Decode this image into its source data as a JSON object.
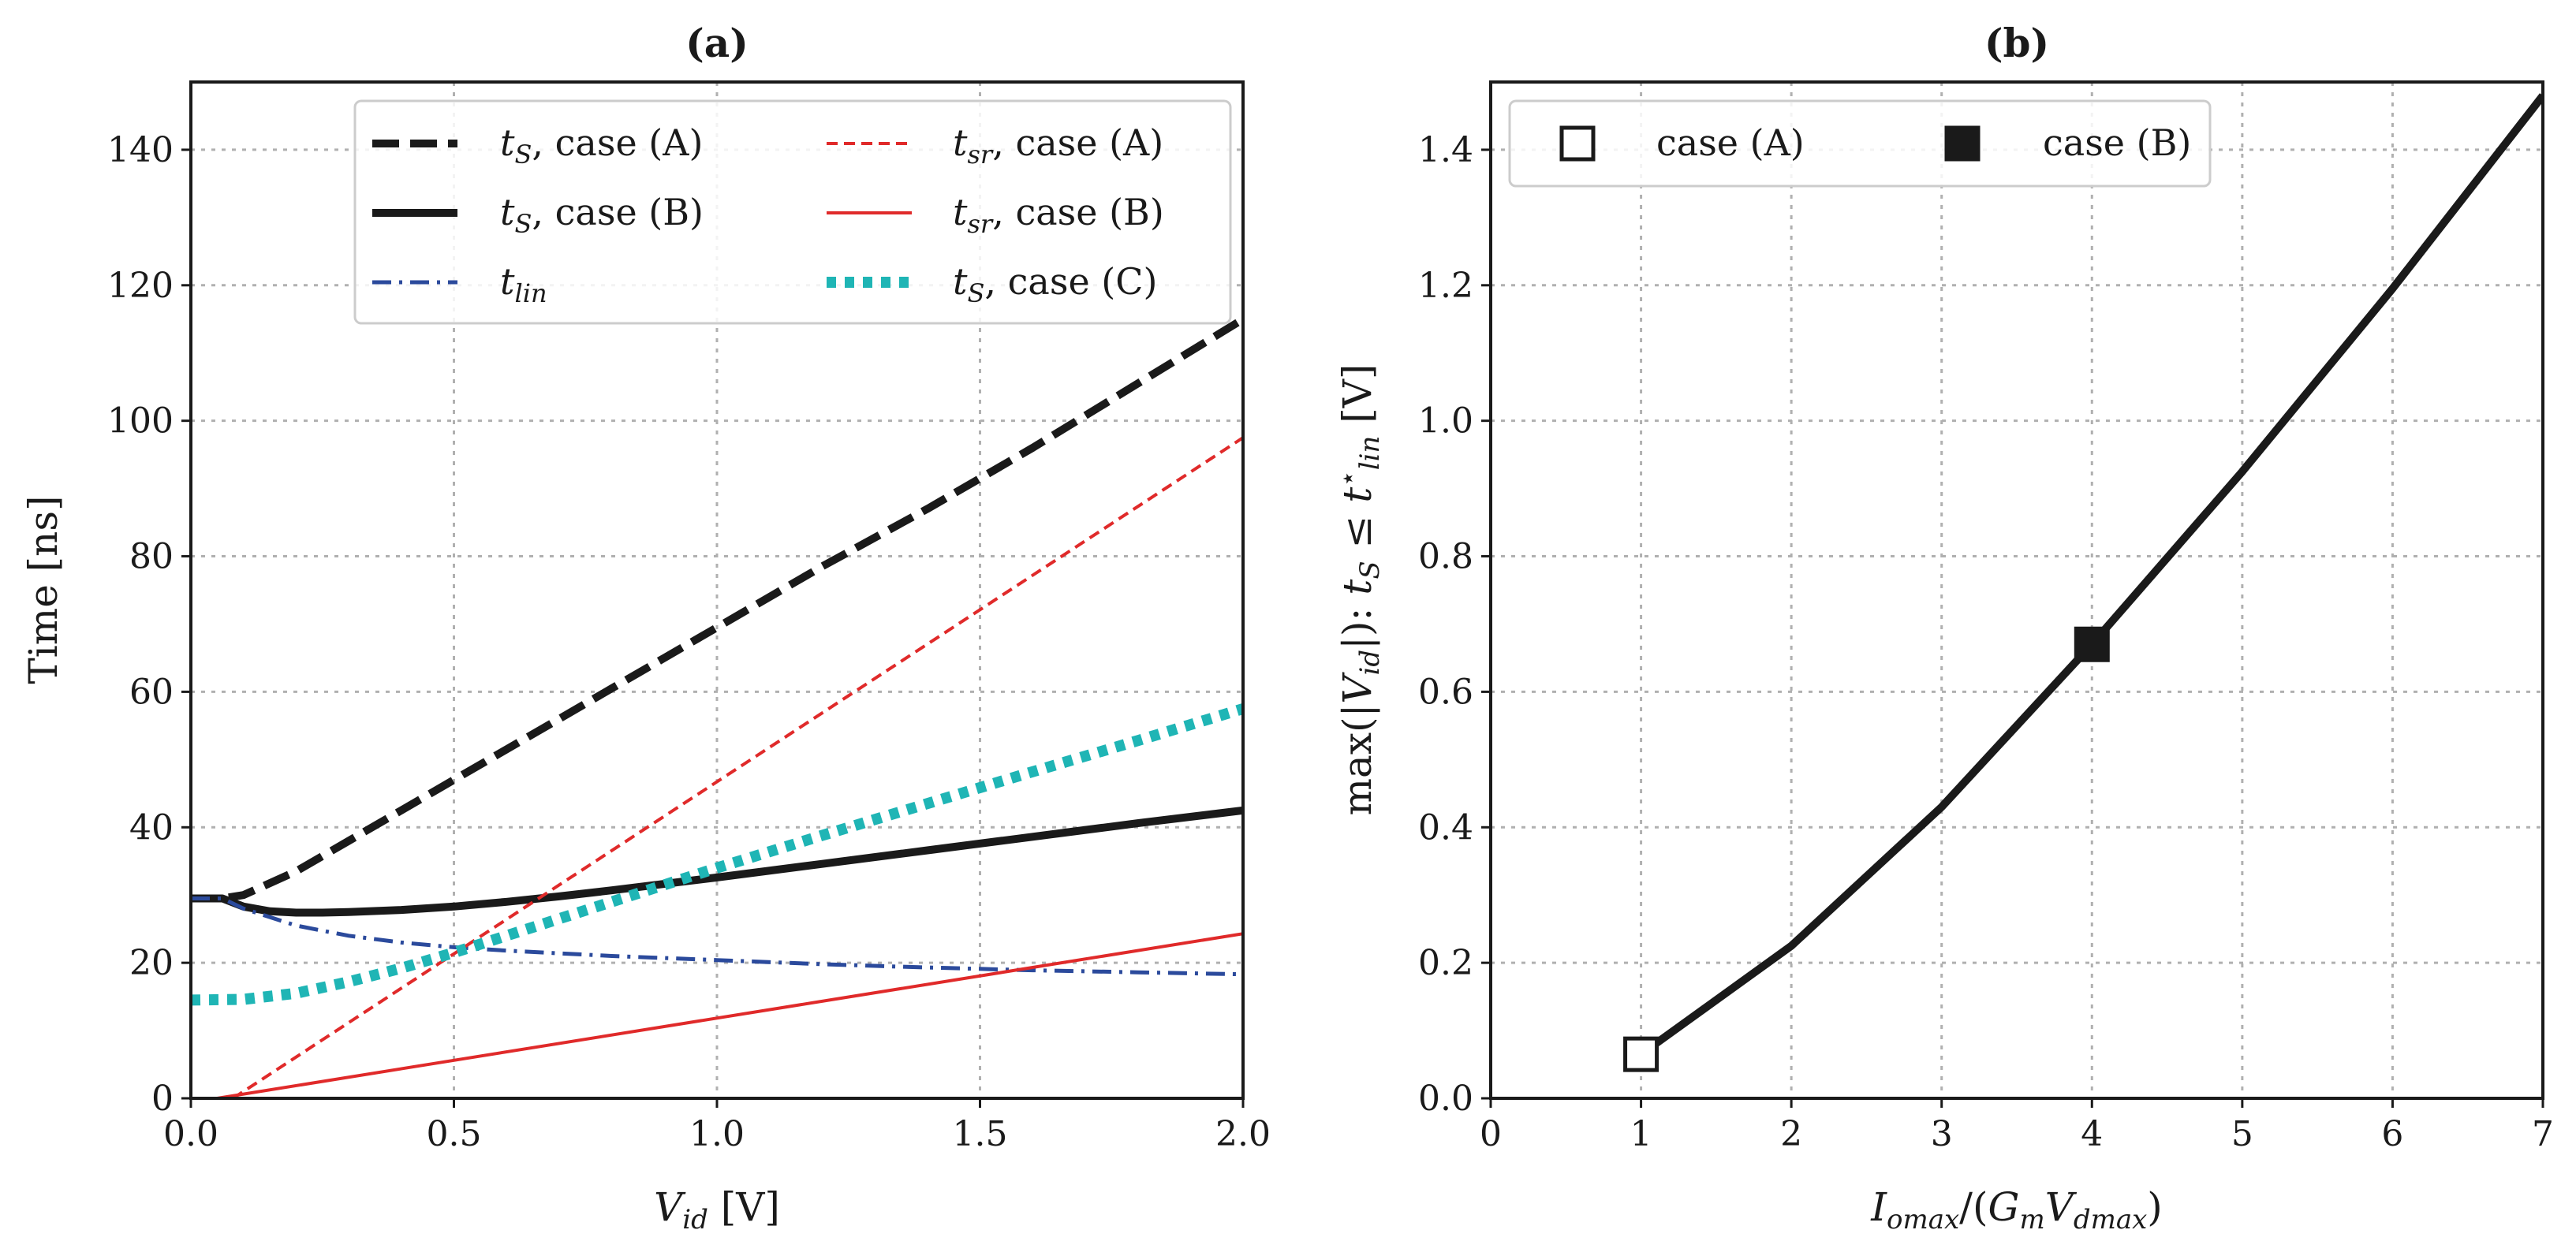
{
  "chart_data": [
    {
      "type": "line",
      "title": "(a)",
      "xlabel": "V_id [V]",
      "ylabel": "Time [ns]",
      "xlim": [
        0.0,
        2.0
      ],
      "ylim": [
        0,
        150
      ],
      "xticks": [
        0.0,
        0.5,
        1.0,
        1.5,
        2.0
      ],
      "xtick_labels": [
        "0.0",
        "0.5",
        "1.0",
        "1.5",
        "2.0"
      ],
      "yticks": [
        0,
        20,
        40,
        60,
        80,
        100,
        120,
        140
      ],
      "ytick_labels": [
        "0",
        "20",
        "40",
        "60",
        "80",
        "100",
        "120",
        "140"
      ],
      "grid": true,
      "legend_position": "top-right",
      "series": [
        {
          "name": "t_S, case (A)",
          "color": "#1a1a1a",
          "style": "dashed-thick",
          "x": [
            0.0,
            0.06,
            0.1,
            0.2,
            0.3,
            0.4,
            0.5,
            0.6,
            0.7,
            0.8,
            0.9,
            1.0,
            1.2,
            1.4,
            1.6,
            1.8,
            2.0
          ],
          "y": [
            29.5,
            29.5,
            30,
            33.5,
            38,
            42.5,
            47,
            51.5,
            56,
            60.5,
            65,
            69.5,
            78.5,
            87,
            96,
            105.5,
            115
          ]
        },
        {
          "name": "t_S, case (B)",
          "color": "#1a1a1a",
          "style": "solid-thick",
          "x": [
            0.0,
            0.06,
            0.1,
            0.15,
            0.2,
            0.25,
            0.3,
            0.4,
            0.5,
            0.6,
            0.7,
            0.8,
            1.0,
            1.2,
            1.4,
            1.6,
            1.8,
            2.0
          ],
          "y": [
            29.5,
            29.5,
            28.3,
            27.6,
            27.4,
            27.4,
            27.5,
            27.8,
            28.3,
            29,
            29.8,
            30.7,
            32.6,
            34.6,
            36.6,
            38.6,
            40.6,
            42.5
          ]
        },
        {
          "name": "t_lin",
          "color": "#2b4a9c",
          "style": "dashdot",
          "x": [
            0.0,
            0.06,
            0.1,
            0.2,
            0.3,
            0.4,
            0.5,
            0.6,
            0.7,
            0.8,
            1.0,
            1.2,
            1.4,
            1.6,
            1.8,
            2.0
          ],
          "y": [
            29.5,
            29.5,
            28,
            25.5,
            24,
            23,
            22.3,
            21.8,
            21.4,
            21,
            20.4,
            19.8,
            19.3,
            18.9,
            18.6,
            18.3
          ]
        },
        {
          "name": "t_sr, case (A)",
          "color": "#e02a2a",
          "style": "dashed-thin",
          "x": [
            0.08,
            2.0
          ],
          "y": [
            0,
            97.5
          ]
        },
        {
          "name": "t_sr, case (B)",
          "color": "#e02a2a",
          "style": "solid-thin",
          "x": [
            0.05,
            2.0
          ],
          "y": [
            0,
            24.3
          ]
        },
        {
          "name": "t_S, case (C)",
          "color": "#1fb5b5",
          "style": "dotted-thick",
          "x": [
            0.0,
            0.1,
            0.2,
            0.3,
            0.4,
            0.5,
            0.6,
            0.7,
            0.8,
            1.0,
            1.2,
            1.4,
            1.6,
            1.8,
            2.0
          ],
          "y": [
            14.5,
            14.6,
            15.5,
            17.2,
            19.2,
            21.5,
            24,
            26.5,
            29,
            34,
            38.8,
            43.5,
            48.2,
            52.8,
            57.5
          ]
        }
      ],
      "legend": [
        {
          "label": "t_S, case (A)",
          "series": 0
        },
        {
          "label": "t_S, case (B)",
          "series": 1
        },
        {
          "label": "t_lin",
          "series": 2
        },
        {
          "label": "t_sr, case (A)",
          "series": 3
        },
        {
          "label": "t_sr, case (B)",
          "series": 4
        },
        {
          "label": "t_S, case (C)",
          "series": 5
        }
      ]
    },
    {
      "type": "line",
      "title": "(b)",
      "xlabel": "I_omax/(G_m V_dmax)",
      "ylabel": "max(|V_id|): t_S ≤ t*_lin [V]",
      "xlim": [
        0,
        7
      ],
      "ylim": [
        0.0,
        1.5
      ],
      "xticks": [
        0,
        1,
        2,
        3,
        4,
        5,
        6,
        7
      ],
      "xtick_labels": [
        "0",
        "1",
        "2",
        "3",
        "4",
        "5",
        "6",
        "7"
      ],
      "yticks": [
        0.0,
        0.2,
        0.4,
        0.6,
        0.8,
        1.0,
        1.2,
        1.4
      ],
      "ytick_labels": [
        "0.0",
        "0.2",
        "0.4",
        "0.6",
        "0.8",
        "1.0",
        "1.2",
        "1.4"
      ],
      "grid": true,
      "legend_position": "top-left",
      "series": [
        {
          "name": "curve",
          "color": "#1a1a1a",
          "style": "solid-thick",
          "x": [
            1,
            2,
            3,
            4,
            5,
            6,
            7
          ],
          "y": [
            0.065,
            0.225,
            0.43,
            0.67,
            0.925,
            1.195,
            1.48
          ]
        }
      ],
      "markers": [
        {
          "label": "case (A)",
          "x": 1,
          "y": 0.065,
          "fill": "open"
        },
        {
          "label": "case (B)",
          "x": 4,
          "y": 0.67,
          "fill": "filled"
        }
      ]
    }
  ]
}
